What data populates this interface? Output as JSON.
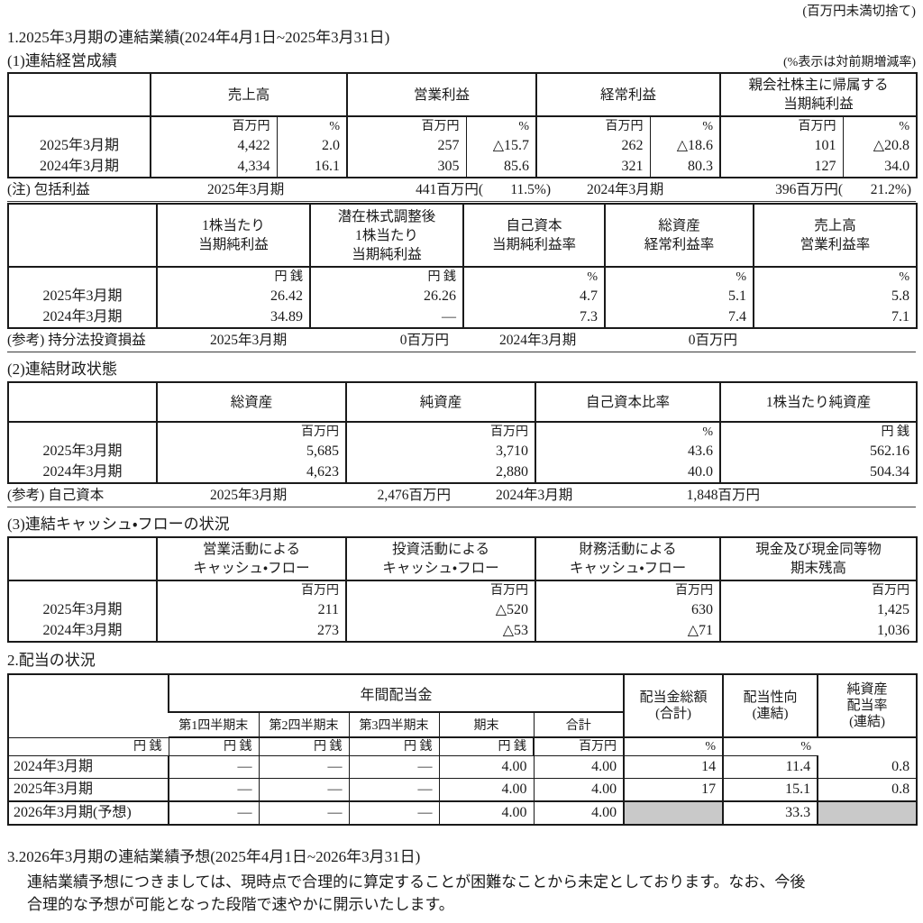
{
  "header_note": "(百万円未満切捨て)",
  "colors": {
    "table_border": "#1a1a1a",
    "shaded_cell": "#c9c9c9"
  },
  "sec1": {
    "title": "1.2025年3月期の連結業績(2024年4月1日~2025年3月31日)",
    "sub1_title": "(1)連結経営成績",
    "pct_note": "(%表示は対前期増減率)",
    "sub2_title": "(2)連結財政状態",
    "sub3_title": "(3)連結キャッシュ・フローの状況"
  },
  "sec2": {
    "title": "2.配当の状況"
  },
  "sec3": {
    "title": "3.2026年3月期の連結業績予想(2025年4月1日~2026年3月31日)",
    "body_lines": [
      "連結業績予想につきましては、現時点で合理的に算定することが困難なことから未定としております。なお、今後",
      "合理的な予想が可能となった段階で速やかに開示いたします。"
    ]
  },
  "notes": {
    "comprehensive": {
      "label": "(注) 包括利益",
      "p1": "2025年3月期",
      "v1": "441百万円(",
      "r1": "11.5%)",
      "p2": "2024年3月期",
      "v2": "396百万円(",
      "r2": "21.2%)"
    },
    "equity_method": {
      "label": "(参考) 持分法投資損益",
      "p1": "2025年3月期",
      "v1": "0百万円",
      "p2": "2024年3月期",
      "v2": "0百万円"
    },
    "own_capital": {
      "label": "(参考) 自己資本",
      "p1": "2025年3月期",
      "v1": "2,476百万円",
      "p2": "2024年3月期",
      "v2": "1,848百万円"
    }
  },
  "tables": {
    "performance": {
      "groups": [
        {
          "label": "",
          "span": 1
        },
        {
          "label": "売上高",
          "span": 2
        },
        {
          "label": "営業利益",
          "span": 2
        },
        {
          "label": "経常利益",
          "span": 2
        },
        {
          "label": "親会社株主に帰属する\n当期純利益",
          "span": 2
        }
      ],
      "units": [
        "百万円",
        "%",
        "百万円",
        "%",
        "百万円",
        "%",
        "百万円",
        "%"
      ],
      "borders": [
        "g",
        "s",
        "g",
        "s",
        "g",
        "s",
        "g",
        "s"
      ],
      "rows": [
        {
          "label": "2025年3月期",
          "values": [
            "4,422",
            "2.0",
            "257",
            "△15.7",
            "262",
            "△18.6",
            "101",
            "△20.8"
          ]
        },
        {
          "label": "2024年3月期",
          "values": [
            "4,334",
            "16.1",
            "305",
            "85.6",
            "321",
            "80.3",
            "127",
            "34.0"
          ]
        }
      ]
    },
    "per_share": {
      "groups": [
        {
          "label": "",
          "span": 1
        },
        {
          "label": "1株当たり\n当期純利益",
          "span": 1
        },
        {
          "label": "潜在株式調整後\n1株当たり\n当期純利益",
          "span": 1
        },
        {
          "label": "自己資本\n当期純利益率",
          "span": 1
        },
        {
          "label": "総資産\n経常利益率",
          "span": 1
        },
        {
          "label": "売上高\n営業利益率",
          "span": 1
        }
      ],
      "units": [
        "円 銭",
        "円 銭",
        "%",
        "%",
        "%"
      ],
      "borders": [
        "g",
        "g",
        "g",
        "g",
        "g"
      ],
      "rows": [
        {
          "label": "2025年3月期",
          "values": [
            "26.42",
            "26.26",
            "4.7",
            "5.1",
            "5.8"
          ]
        },
        {
          "label": "2024年3月期",
          "values": [
            "34.89",
            "―",
            "7.3",
            "7.4",
            "7.1"
          ]
        }
      ]
    },
    "financial_position": {
      "groups": [
        {
          "label": "",
          "span": 1
        },
        {
          "label": "総資産",
          "span": 1
        },
        {
          "label": "純資産",
          "span": 1
        },
        {
          "label": "自己資本比率",
          "span": 1
        },
        {
          "label": "1株当たり純資産",
          "span": 1
        }
      ],
      "units": [
        "百万円",
        "百万円",
        "%",
        "円 銭"
      ],
      "borders": [
        "g",
        "g",
        "g",
        "g"
      ],
      "rows": [
        {
          "label": "2025年3月期",
          "values": [
            "5,685",
            "3,710",
            "43.6",
            "562.16"
          ]
        },
        {
          "label": "2024年3月期",
          "values": [
            "4,623",
            "2,880",
            "40.0",
            "504.34"
          ]
        }
      ]
    },
    "cash_flow": {
      "groups": [
        {
          "label": "",
          "span": 1
        },
        {
          "label": "営業活動による\nキャッシュ・フロー",
          "span": 1
        },
        {
          "label": "投資活動による\nキャッシュ・フロー",
          "span": 1
        },
        {
          "label": "財務活動による\nキャッシュ・フロー",
          "span": 1
        },
        {
          "label": "現金及び現金同等物\n期末残高",
          "span": 1
        }
      ],
      "units": [
        "百万円",
        "百万円",
        "百万円",
        "百万円"
      ],
      "borders": [
        "g",
        "g",
        "g",
        "g"
      ],
      "rows": [
        {
          "label": "2025年3月期",
          "values": [
            "211",
            "△520",
            "630",
            "1,425"
          ]
        },
        {
          "label": "2024年3月期",
          "values": [
            "273",
            "△53",
            "△71",
            "1,036"
          ]
        }
      ]
    },
    "dividends": {
      "annual_label": "年間配当金",
      "quarter_heads": [
        "第1四半期末",
        "第2四半期末",
        "第3四半期末",
        "期末",
        "合計"
      ],
      "right_heads": [
        "配当金総額\n(合計)",
        "配当性向\n(連結)",
        "純資産\n配当率\n(連結)"
      ],
      "units": [
        "円 銭",
        "円 銭",
        "円 銭",
        "円 銭",
        "円 銭",
        "百万円",
        "%",
        "%"
      ],
      "borders": [
        "g",
        "s",
        "s",
        "s",
        "s",
        "g",
        "g",
        "g"
      ],
      "rows": [
        {
          "label": "2024年3月期",
          "values": [
            "―",
            "―",
            "―",
            "4.00",
            "4.00",
            "14",
            "11.4",
            "0.8"
          ]
        },
        {
          "label": "2025年3月期",
          "values": [
            "―",
            "―",
            "―",
            "4.00",
            "4.00",
            "17",
            "15.1",
            "0.8"
          ]
        },
        {
          "label": "2026年3月期(予想)",
          "values": [
            "―",
            "―",
            "―",
            "4.00",
            "4.00",
            "",
            "33.3",
            ""
          ],
          "forecast": true,
          "gray": [
            5,
            7
          ]
        }
      ]
    }
  }
}
